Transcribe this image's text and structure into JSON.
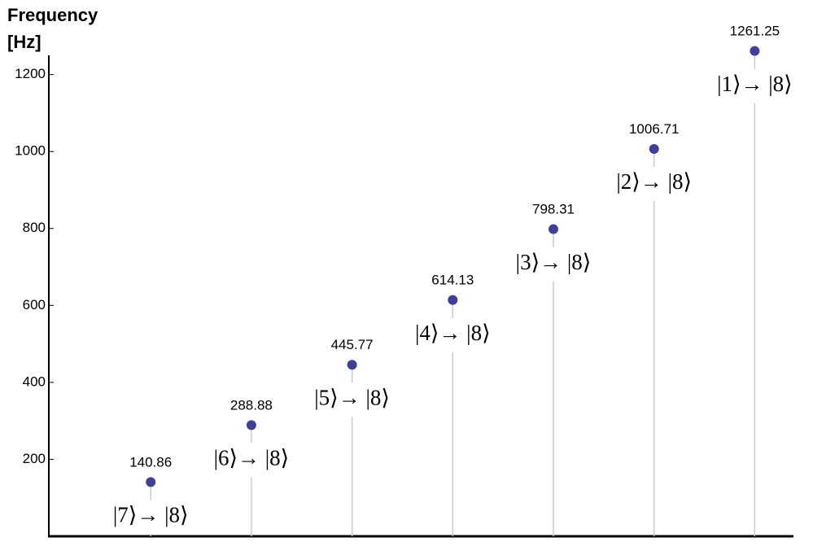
{
  "chart_data": {
    "type": "stem",
    "y_label": "Frequency [Hz]",
    "categories": [
      null,
      null,
      null,
      null,
      null,
      null,
      null
    ],
    "values": [
      140.86,
      288.88,
      445.77,
      614.13,
      798.31,
      1006.71,
      1261.25
    ],
    "annotations": [
      "|7⟩→ |8⟩",
      "|6⟩→ |8⟩",
      "|5⟩→ |8⟩",
      "|4⟩→ |8⟩",
      "|3⟩→ |8⟩",
      "|2⟩→ |8⟩",
      "|1⟩→ |8⟩"
    ],
    "color": "#3f3f96",
    "stem_color": "#c8cad6",
    "ylim": [
      0,
      1250
    ],
    "yticks": [
      200,
      400,
      600,
      800,
      1000,
      1200
    ]
  }
}
